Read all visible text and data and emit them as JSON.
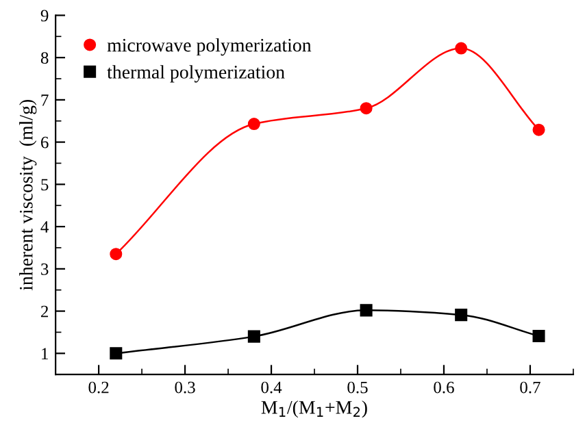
{
  "chart_data": {
    "type": "line",
    "xlabel": "M$_{1}$/(M$_{1}$+M$_{2}$)",
    "ylabel": "inherent viscosity  (ml/g)",
    "x": [
      0.22,
      0.38,
      0.51,
      0.62,
      0.71
    ],
    "series": [
      {
        "name": "microwave polymerization",
        "color": "#ff0000",
        "marker": "circle",
        "values": [
          3.35,
          6.43,
          6.8,
          8.22,
          6.29
        ]
      },
      {
        "name": "thermal polymerization",
        "color": "#000000",
        "marker": "square",
        "values": [
          1.0,
          1.4,
          2.02,
          1.91,
          1.41
        ]
      }
    ],
    "xlim": [
      0.15,
      0.75
    ],
    "xticks": [
      {
        "value": 0.2,
        "label": "0.2"
      },
      {
        "value": 0.3,
        "label": "0.3"
      },
      {
        "value": 0.4,
        "label": "0.4"
      },
      {
        "value": 0.5,
        "label": "0.5"
      },
      {
        "value": 0.6,
        "label": "0.6"
      },
      {
        "value": 0.7,
        "label": "0.7"
      }
    ],
    "ylim": [
      0.5,
      9
    ],
    "yticks": [
      1,
      2,
      3,
      4,
      5,
      6,
      7,
      8,
      9
    ],
    "legend": "top left",
    "grid": false
  }
}
